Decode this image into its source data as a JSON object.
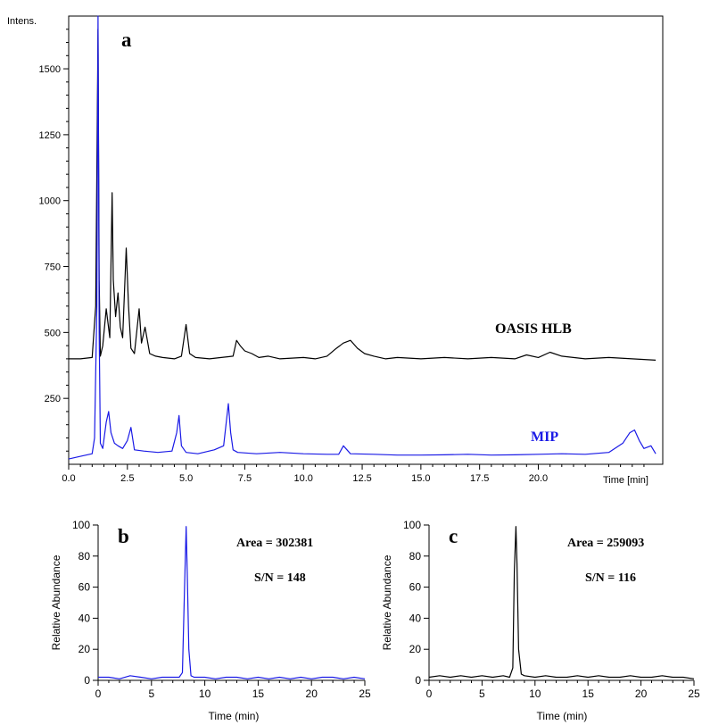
{
  "chart_data": [
    {
      "type": "line",
      "panel_label": "a",
      "ylabel": "Intens.",
      "xlabel": "Time [min]",
      "xlim": [
        0,
        25.3
      ],
      "ylim": [
        0,
        1700
      ],
      "xticks": [
        0.0,
        2.5,
        5.0,
        7.5,
        10.0,
        12.5,
        15.0,
        17.5,
        20.0
      ],
      "xtick_labels": [
        "0.0",
        "2.5",
        "5.0",
        "7.5",
        "10.0",
        "12.5",
        "15.0",
        "17.5",
        "20.0"
      ],
      "yticks": [
        250,
        500,
        750,
        1000,
        1250,
        1500
      ],
      "ytick_labels": [
        "250",
        "500",
        "750",
        "1000",
        "1250",
        "1500"
      ],
      "series": [
        {
          "name": "OASIS HLB",
          "color": "#000000",
          "label_color": "#000000",
          "x": [
            0.0,
            0.5,
            1.0,
            1.15,
            1.25,
            1.3,
            1.35,
            1.45,
            1.6,
            1.75,
            1.85,
            1.9,
            2.0,
            2.1,
            2.2,
            2.3,
            2.45,
            2.55,
            2.65,
            2.8,
            3.0,
            3.1,
            3.25,
            3.45,
            3.7,
            4.0,
            4.5,
            4.8,
            5.0,
            5.15,
            5.4,
            6.0,
            6.5,
            7.0,
            7.15,
            7.3,
            7.5,
            7.8,
            8.1,
            8.5,
            9.0,
            10.0,
            10.5,
            11.0,
            11.4,
            11.7,
            12.0,
            12.3,
            12.6,
            13.0,
            13.5,
            14.0,
            15.0,
            16.0,
            17.0,
            18.0,
            19.0,
            19.5,
            20.0,
            20.5,
            21.0,
            22.0,
            23.0,
            24.0,
            25.0
          ],
          "y": [
            400,
            400,
            405,
            600,
            1650,
            700,
            410,
            450,
            590,
            480,
            1030,
            700,
            560,
            650,
            520,
            480,
            820,
            600,
            440,
            420,
            590,
            460,
            520,
            420,
            410,
            405,
            400,
            410,
            530,
            420,
            405,
            400,
            405,
            410,
            470,
            450,
            430,
            420,
            405,
            410,
            400,
            405,
            400,
            410,
            440,
            460,
            470,
            440,
            420,
            410,
            400,
            405,
            400,
            405,
            400,
            405,
            400,
            415,
            405,
            425,
            410,
            400,
            405,
            400,
            395
          ]
        },
        {
          "name": "MIP",
          "color": "#1a1ae6",
          "label_color": "#1a1ae6",
          "x": [
            0.0,
            0.5,
            1.0,
            1.1,
            1.2,
            1.25,
            1.3,
            1.35,
            1.45,
            1.6,
            1.7,
            1.8,
            1.95,
            2.1,
            2.3,
            2.5,
            2.65,
            2.8,
            3.2,
            3.8,
            4.4,
            4.6,
            4.7,
            4.8,
            5.0,
            5.5,
            6.2,
            6.6,
            6.8,
            6.9,
            7.0,
            7.2,
            8.0,
            9.0,
            10.0,
            11.0,
            11.5,
            11.7,
            12.0,
            13.0,
            14.0,
            15.0,
            16.0,
            17.0,
            18.0,
            19.0,
            20.0,
            21.0,
            22.0,
            23.0,
            23.6,
            23.9,
            24.1,
            24.3,
            24.5,
            24.8,
            25.0
          ],
          "y": [
            20,
            30,
            40,
            100,
            600,
            1700,
            500,
            80,
            60,
            160,
            200,
            120,
            80,
            70,
            60,
            90,
            140,
            55,
            50,
            45,
            50,
            120,
            185,
            70,
            45,
            40,
            55,
            70,
            230,
            120,
            55,
            45,
            40,
            45,
            40,
            38,
            38,
            70,
            40,
            38,
            35,
            35,
            36,
            38,
            35,
            36,
            38,
            40,
            38,
            45,
            80,
            120,
            130,
            90,
            60,
            70,
            40
          ]
        }
      ]
    },
    {
      "type": "line",
      "panel_label": "b",
      "ylabel": "Relative Abundance",
      "xlabel": "Time (min)",
      "xlim": [
        0,
        25
      ],
      "ylim": [
        0,
        100
      ],
      "xticks": [
        0,
        5,
        10,
        15,
        20,
        25
      ],
      "xtick_labels": [
        "0",
        "5",
        "10",
        "15",
        "20",
        "25"
      ],
      "yticks": [
        0,
        20,
        40,
        60,
        80,
        100
      ],
      "ytick_labels": [
        "0",
        "20",
        "40",
        "60",
        "80",
        "100"
      ],
      "annotations": [
        "Area = 302381",
        "S/N = 148"
      ],
      "series": [
        {
          "color": "#1a1ae6",
          "x": [
            0,
            1,
            2,
            3,
            4,
            5,
            6,
            7,
            7.6,
            7.9,
            8.1,
            8.25,
            8.35,
            8.5,
            8.7,
            9,
            10,
            11,
            12,
            13,
            14,
            15,
            16,
            17,
            18,
            19,
            20,
            21,
            22,
            23,
            24,
            25
          ],
          "y": [
            2,
            2,
            1,
            3,
            2,
            1,
            2,
            2,
            2,
            5,
            60,
            99,
            70,
            20,
            3,
            2,
            2,
            1,
            2,
            2,
            1,
            2,
            1,
            2,
            1,
            2,
            1,
            2,
            2,
            1,
            2,
            1
          ]
        }
      ]
    },
    {
      "type": "line",
      "panel_label": "c",
      "ylabel": "Relative Abundance",
      "xlabel": "Time (min)",
      "xlim": [
        0,
        25
      ],
      "ylim": [
        0,
        100
      ],
      "xticks": [
        0,
        5,
        10,
        15,
        20,
        25
      ],
      "xtick_labels": [
        "0",
        "5",
        "10",
        "15",
        "20",
        "25"
      ],
      "yticks": [
        0,
        20,
        40,
        60,
        80,
        100
      ],
      "ytick_labels": [
        "0",
        "20",
        "40",
        "60",
        "80",
        "100"
      ],
      "annotations": [
        "Area = 259093",
        "S/N = 116"
      ],
      "series": [
        {
          "color": "#000000",
          "x": [
            0,
            1,
            2,
            3,
            4,
            5,
            6,
            7,
            7.6,
            7.9,
            8.05,
            8.2,
            8.3,
            8.45,
            8.7,
            9,
            10,
            11,
            12,
            13,
            14,
            15,
            16,
            17,
            18,
            19,
            20,
            21,
            22,
            23,
            24,
            25
          ],
          "y": [
            2,
            3,
            2,
            3,
            2,
            3,
            2,
            3,
            2,
            8,
            70,
            99,
            75,
            20,
            4,
            3,
            2,
            3,
            2,
            2,
            3,
            2,
            3,
            2,
            2,
            3,
            2,
            2,
            3,
            2,
            2,
            1
          ]
        }
      ]
    }
  ]
}
